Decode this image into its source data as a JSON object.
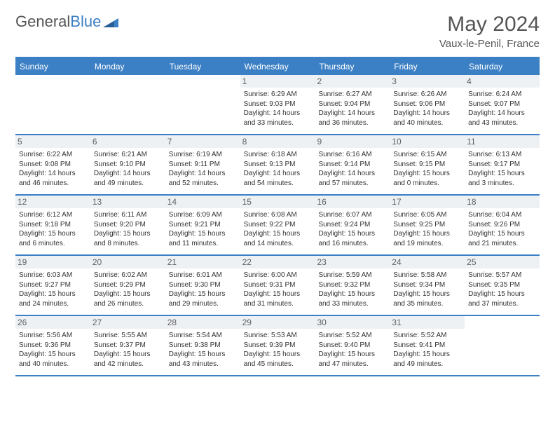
{
  "brand": {
    "part1": "General",
    "part2": "Blue"
  },
  "title": "May 2024",
  "location": "Vaux-le-Penil, France",
  "colors": {
    "accent": "#3b7fc4",
    "header_text": "#555555",
    "day_text": "#333333",
    "day_num_bg": "#eef1f4",
    "background": "#ffffff"
  },
  "fonts": {
    "title_size_pt": 22,
    "location_size_pt": 11,
    "dow_size_pt": 9,
    "daynum_size_pt": 9,
    "body_size_pt": 7.5
  },
  "dow": [
    "Sunday",
    "Monday",
    "Tuesday",
    "Wednesday",
    "Thursday",
    "Friday",
    "Saturday"
  ],
  "weeks": [
    [
      {
        "n": "",
        "sr": "",
        "ss": "",
        "dl": ""
      },
      {
        "n": "",
        "sr": "",
        "ss": "",
        "dl": ""
      },
      {
        "n": "",
        "sr": "",
        "ss": "",
        "dl": ""
      },
      {
        "n": "1",
        "sr": "6:29 AM",
        "ss": "9:03 PM",
        "dl": "14 hours and 33 minutes."
      },
      {
        "n": "2",
        "sr": "6:27 AM",
        "ss": "9:04 PM",
        "dl": "14 hours and 36 minutes."
      },
      {
        "n": "3",
        "sr": "6:26 AM",
        "ss": "9:06 PM",
        "dl": "14 hours and 40 minutes."
      },
      {
        "n": "4",
        "sr": "6:24 AM",
        "ss": "9:07 PM",
        "dl": "14 hours and 43 minutes."
      }
    ],
    [
      {
        "n": "5",
        "sr": "6:22 AM",
        "ss": "9:08 PM",
        "dl": "14 hours and 46 minutes."
      },
      {
        "n": "6",
        "sr": "6:21 AM",
        "ss": "9:10 PM",
        "dl": "14 hours and 49 minutes."
      },
      {
        "n": "7",
        "sr": "6:19 AM",
        "ss": "9:11 PM",
        "dl": "14 hours and 52 minutes."
      },
      {
        "n": "8",
        "sr": "6:18 AM",
        "ss": "9:13 PM",
        "dl": "14 hours and 54 minutes."
      },
      {
        "n": "9",
        "sr": "6:16 AM",
        "ss": "9:14 PM",
        "dl": "14 hours and 57 minutes."
      },
      {
        "n": "10",
        "sr": "6:15 AM",
        "ss": "9:15 PM",
        "dl": "15 hours and 0 minutes."
      },
      {
        "n": "11",
        "sr": "6:13 AM",
        "ss": "9:17 PM",
        "dl": "15 hours and 3 minutes."
      }
    ],
    [
      {
        "n": "12",
        "sr": "6:12 AM",
        "ss": "9:18 PM",
        "dl": "15 hours and 6 minutes."
      },
      {
        "n": "13",
        "sr": "6:11 AM",
        "ss": "9:20 PM",
        "dl": "15 hours and 8 minutes."
      },
      {
        "n": "14",
        "sr": "6:09 AM",
        "ss": "9:21 PM",
        "dl": "15 hours and 11 minutes."
      },
      {
        "n": "15",
        "sr": "6:08 AM",
        "ss": "9:22 PM",
        "dl": "15 hours and 14 minutes."
      },
      {
        "n": "16",
        "sr": "6:07 AM",
        "ss": "9:24 PM",
        "dl": "15 hours and 16 minutes."
      },
      {
        "n": "17",
        "sr": "6:05 AM",
        "ss": "9:25 PM",
        "dl": "15 hours and 19 minutes."
      },
      {
        "n": "18",
        "sr": "6:04 AM",
        "ss": "9:26 PM",
        "dl": "15 hours and 21 minutes."
      }
    ],
    [
      {
        "n": "19",
        "sr": "6:03 AM",
        "ss": "9:27 PM",
        "dl": "15 hours and 24 minutes."
      },
      {
        "n": "20",
        "sr": "6:02 AM",
        "ss": "9:29 PM",
        "dl": "15 hours and 26 minutes."
      },
      {
        "n": "21",
        "sr": "6:01 AM",
        "ss": "9:30 PM",
        "dl": "15 hours and 29 minutes."
      },
      {
        "n": "22",
        "sr": "6:00 AM",
        "ss": "9:31 PM",
        "dl": "15 hours and 31 minutes."
      },
      {
        "n": "23",
        "sr": "5:59 AM",
        "ss": "9:32 PM",
        "dl": "15 hours and 33 minutes."
      },
      {
        "n": "24",
        "sr": "5:58 AM",
        "ss": "9:34 PM",
        "dl": "15 hours and 35 minutes."
      },
      {
        "n": "25",
        "sr": "5:57 AM",
        "ss": "9:35 PM",
        "dl": "15 hours and 37 minutes."
      }
    ],
    [
      {
        "n": "26",
        "sr": "5:56 AM",
        "ss": "9:36 PM",
        "dl": "15 hours and 40 minutes."
      },
      {
        "n": "27",
        "sr": "5:55 AM",
        "ss": "9:37 PM",
        "dl": "15 hours and 42 minutes."
      },
      {
        "n": "28",
        "sr": "5:54 AM",
        "ss": "9:38 PM",
        "dl": "15 hours and 43 minutes."
      },
      {
        "n": "29",
        "sr": "5:53 AM",
        "ss": "9:39 PM",
        "dl": "15 hours and 45 minutes."
      },
      {
        "n": "30",
        "sr": "5:52 AM",
        "ss": "9:40 PM",
        "dl": "15 hours and 47 minutes."
      },
      {
        "n": "31",
        "sr": "5:52 AM",
        "ss": "9:41 PM",
        "dl": "15 hours and 49 minutes."
      },
      {
        "n": "",
        "sr": "",
        "ss": "",
        "dl": ""
      }
    ]
  ],
  "labels": {
    "sunrise": "Sunrise: ",
    "sunset": "Sunset: ",
    "daylight": "Daylight: "
  }
}
